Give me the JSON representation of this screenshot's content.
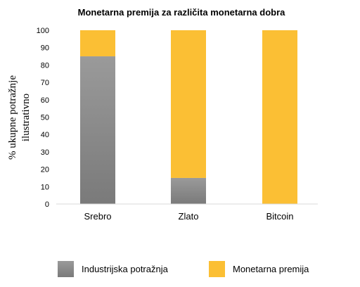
{
  "chart_data": {
    "type": "bar",
    "stacked": true,
    "title": "Monetarna premija za različita monetarna dobra",
    "ylabel_lines": [
      "% ukupne potražnje",
      "ilustrativno"
    ],
    "xlabel": "",
    "categories": [
      "Srebro",
      "Zlato",
      "Bitcoin"
    ],
    "ylim": [
      0,
      100
    ],
    "yticks": [
      0,
      10,
      20,
      30,
      40,
      50,
      60,
      70,
      80,
      90,
      100
    ],
    "series": [
      {
        "name": "Industrijska potražnja",
        "values": [
          85,
          15,
          0
        ],
        "color": "#8c8c8c"
      },
      {
        "name": "Monetarna premija",
        "values": [
          15,
          85,
          100
        ],
        "color": "#fbbf34"
      }
    ],
    "grid": false,
    "legend_position": "bottom"
  }
}
